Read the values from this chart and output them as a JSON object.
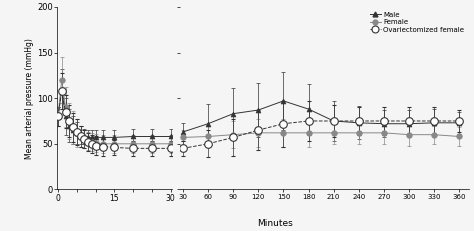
{
  "title": "",
  "ylabel": "Mean arterial pressure (mmHg)",
  "xlabel": "Minutes",
  "background_color": "#f5f5f5",
  "left_x": [
    0,
    1,
    2,
    3,
    4,
    5,
    6,
    7,
    8,
    9,
    10,
    12,
    15,
    20,
    25,
    30
  ],
  "male_left_y": [
    80,
    110,
    80,
    70,
    65,
    62,
    60,
    58,
    57,
    57,
    57,
    57,
    57,
    58,
    58,
    58
  ],
  "male_left_yerr": [
    10,
    22,
    20,
    18,
    15,
    12,
    10,
    8,
    8,
    8,
    8,
    8,
    8,
    8,
    8,
    8
  ],
  "female_left_y": [
    80,
    120,
    90,
    75,
    68,
    62,
    58,
    55,
    53,
    52,
    51,
    50,
    50,
    50,
    50,
    50
  ],
  "female_left_yerr": [
    10,
    25,
    22,
    20,
    18,
    15,
    12,
    10,
    10,
    10,
    10,
    10,
    10,
    10,
    10,
    10
  ],
  "ovx_left_y": [
    80,
    108,
    85,
    75,
    68,
    63,
    58,
    55,
    52,
    50,
    48,
    47,
    46,
    45,
    45,
    45
  ],
  "ovx_left_yerr": [
    10,
    20,
    18,
    18,
    16,
    14,
    12,
    10,
    10,
    10,
    10,
    10,
    8,
    8,
    8,
    8
  ],
  "right_x": [
    30,
    60,
    90,
    120,
    150,
    180,
    210,
    240,
    270,
    300,
    330,
    360
  ],
  "male_right_y": [
    63,
    72,
    83,
    87,
    97,
    88,
    75,
    73,
    72,
    72,
    73,
    73
  ],
  "male_right_yerr": [
    10,
    22,
    28,
    30,
    32,
    28,
    22,
    18,
    15,
    15,
    15,
    12
  ],
  "female_right_y": [
    57,
    58,
    60,
    62,
    62,
    62,
    62,
    62,
    62,
    60,
    60,
    58
  ],
  "female_right_yerr": [
    8,
    12,
    15,
    15,
    15,
    15,
    12,
    12,
    12,
    12,
    10,
    10
  ],
  "ovx_right_y": [
    45,
    50,
    57,
    65,
    72,
    75,
    75,
    75,
    75,
    75,
    75,
    75
  ],
  "ovx_right_yerr": [
    8,
    15,
    20,
    22,
    25,
    22,
    18,
    15,
    15,
    15,
    15,
    12
  ],
  "male_color": "#333333",
  "female_color": "#888888",
  "ovx_color": "#333333",
  "legend_labels": [
    "Male",
    "Female",
    "Ovariectomized female"
  ],
  "ylim": [
    0,
    200
  ],
  "yticks": [
    0,
    50,
    100,
    150,
    200
  ],
  "left_xticks": [
    0,
    5,
    10,
    15,
    20,
    25,
    30
  ],
  "left_xticklabels": [
    "0",
    "",
    "",
    "15",
    "",
    "",
    "30"
  ],
  "right_xticks": [
    30,
    60,
    90,
    120,
    150,
    180,
    210,
    240,
    270,
    300,
    330,
    360
  ]
}
